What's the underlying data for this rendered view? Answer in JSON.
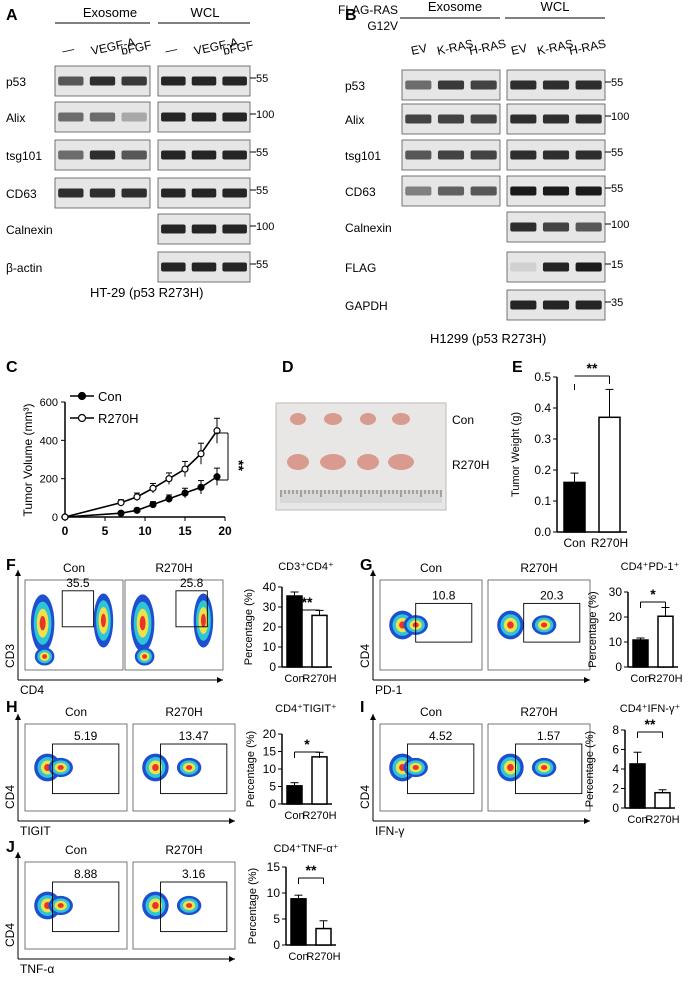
{
  "panelA": {
    "label": "A",
    "group_exosome": "Exosome",
    "group_wcl": "WCL",
    "lanes": [
      "—",
      "VEGF-A",
      "bFGF"
    ],
    "caption": "HT-29 (p53 R273H)",
    "rows": [
      {
        "name": "p53",
        "mw": "55"
      },
      {
        "name": "Alix",
        "mw": "100"
      },
      {
        "name": "tsg101",
        "mw": "55"
      },
      {
        "name": "CD63",
        "mw": "55"
      },
      {
        "name": "Calnexin",
        "mw": "100"
      },
      {
        "name": "β-actin",
        "mw": "55"
      }
    ]
  },
  "panelB": {
    "label": "B",
    "group_exosome": "Exosome",
    "group_wcl": "WCL",
    "condition_line1": "FLAG-RAS",
    "condition_line2": "G12V",
    "lanes": [
      "EV",
      "K-RAS",
      "H-RAS"
    ],
    "caption": "H1299 (p53 R273H)",
    "rows": [
      {
        "name": "p53",
        "mw": "55"
      },
      {
        "name": "Alix",
        "mw": "100"
      },
      {
        "name": "tsg101",
        "mw": "55"
      },
      {
        "name": "CD63",
        "mw": "55"
      },
      {
        "name": "Calnexin",
        "mw": "100"
      },
      {
        "name": "FLAG",
        "mw": "15"
      },
      {
        "name": "GAPDH",
        "mw": "35"
      }
    ]
  },
  "panelC": {
    "label": "C",
    "sig": "**",
    "chart_data": {
      "type": "line",
      "ylabel": "Tumor Volume (mm³)",
      "xlim": [
        0,
        20
      ],
      "ylim": [
        0,
        600
      ],
      "xticks": [
        "0",
        "5",
        "10",
        "15",
        "20"
      ],
      "yticks": [
        "0",
        "200",
        "400",
        "600"
      ],
      "legend": "top-left",
      "series": [
        {
          "name": "Con",
          "x": [
            0,
            7,
            9,
            11,
            13,
            15,
            17,
            19
          ],
          "y": [
            0,
            20,
            35,
            65,
            95,
            125,
            155,
            210
          ],
          "err": [
            0,
            8,
            10,
            15,
            20,
            25,
            35,
            45
          ]
        },
        {
          "name": "R270H",
          "x": [
            0,
            7,
            9,
            11,
            13,
            15,
            17,
            19
          ],
          "y": [
            0,
            75,
            105,
            150,
            200,
            250,
            330,
            450
          ],
          "err": [
            0,
            15,
            20,
            25,
            30,
            40,
            55,
            65
          ]
        }
      ]
    }
  },
  "panelD": {
    "label": "D",
    "con_label": "Con",
    "r270h_label": "R270H"
  },
  "panelE": {
    "label": "E",
    "sig": "**",
    "chart_data": {
      "type": "bar",
      "categories": [
        "Con",
        "R270H"
      ],
      "values": [
        0.16,
        0.37
      ],
      "err": [
        0.03,
        0.09
      ],
      "ylabel": "Tumor Weight (g)",
      "ylim": [
        0,
        0.5
      ],
      "yticks": [
        "0.0",
        "0.1",
        "0.2",
        "0.3",
        "0.4",
        "0.5"
      ]
    }
  },
  "flowPanels": [
    {
      "label": "F",
      "con": "Con",
      "mut": "R270H",
      "title": "CD3⁺CD4⁺",
      "yaxis": "CD3",
      "xaxis": "CD4",
      "pct_con": "35.5",
      "pct_mut": "25.8",
      "sig": "**",
      "chart_data": {
        "type": "bar",
        "categories": [
          "Con",
          "R270H"
        ],
        "values": [
          35.5,
          25.8
        ],
        "err": [
          2,
          2.5
        ],
        "ylabel": "Percentage (%)",
        "ylim": [
          0,
          40
        ],
        "yticks": [
          "0",
          "10",
          "20",
          "30",
          "40"
        ]
      }
    },
    {
      "label": "G",
      "con": "Con",
      "mut": "R270H",
      "title": "CD4⁺PD-1⁺",
      "yaxis": "CD4",
      "xaxis": "PD-1",
      "pct_con": "10.8",
      "pct_mut": "20.3",
      "sig": "*",
      "chart_data": {
        "type": "bar",
        "categories": [
          "Con",
          "R270H"
        ],
        "values": [
          10.8,
          20.3
        ],
        "err": [
          0.8,
          3.5
        ],
        "ylabel": "Percentage (%)",
        "ylim": [
          0,
          30
        ],
        "yticks": [
          "0",
          "10",
          "20",
          "30"
        ]
      }
    },
    {
      "label": "H",
      "con": "Con",
      "mut": "R270H",
      "title": "CD4⁺TIGIT⁺",
      "yaxis": "CD4",
      "xaxis": "TIGIT",
      "pct_con": "5.19",
      "pct_mut": "13.47",
      "sig": "*",
      "chart_data": {
        "type": "bar",
        "categories": [
          "Con",
          "R270H"
        ],
        "values": [
          5.19,
          13.47
        ],
        "err": [
          0.9,
          1.3
        ],
        "ylabel": "Percentage (%)",
        "ylim": [
          0,
          20
        ],
        "yticks": [
          "0",
          "5",
          "10",
          "15",
          "20"
        ]
      }
    },
    {
      "label": "I",
      "con": "Con",
      "mut": "R270H",
      "title": "CD4⁺IFN-γ⁺",
      "yaxis": "CD4",
      "xaxis": "IFN-γ",
      "pct_con": "4.52",
      "pct_mut": "1.57",
      "sig": "**",
      "chart_data": {
        "type": "bar",
        "categories": [
          "Con",
          "R270H"
        ],
        "values": [
          4.52,
          1.57
        ],
        "err": [
          1.2,
          0.3
        ],
        "ylabel": "Percentage (%)",
        "ylim": [
          0,
          8
        ],
        "yticks": [
          "0",
          "2",
          "4",
          "6",
          "8"
        ]
      }
    },
    {
      "label": "J",
      "con": "Con",
      "mut": "R270H",
      "title": "CD4⁺TNF-α⁺",
      "yaxis": "CD4",
      "xaxis": "TNF-α",
      "pct_con": "8.88",
      "pct_mut": "3.16",
      "sig": "**",
      "chart_data": {
        "type": "bar",
        "categories": [
          "Con",
          "R270H"
        ],
        "values": [
          8.88,
          3.16
        ],
        "err": [
          0.7,
          1.5
        ],
        "ylabel": "Percentage (%)",
        "ylim": [
          0,
          15
        ],
        "yticks": [
          "0",
          "5",
          "10",
          "15"
        ]
      }
    }
  ],
  "colors": {
    "bar_con": "#000000",
    "bar_mut": "#ffffff",
    "blot_bg": "#e6e6e6",
    "band": "#1a1a1a",
    "tumor": "#d99a90"
  }
}
